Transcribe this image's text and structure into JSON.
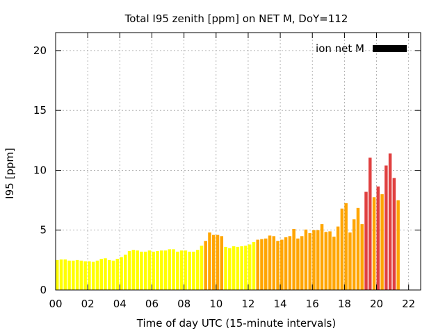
{
  "chart_data": {
    "type": "bar",
    "title": "Total I95 zenith [ppm] on NET M, DoY=112",
    "xlabel": "Time of day UTC (15-minute intervals)",
    "ylabel": "I95 [ppm]",
    "xlim": [
      0,
      22.75
    ],
    "ylim": [
      0,
      21.5
    ],
    "x_ticks": [
      "00",
      "02",
      "04",
      "06",
      "08",
      "10",
      "12",
      "14",
      "16",
      "18",
      "20",
      "22"
    ],
    "x_tick_values": [
      0,
      2,
      4,
      6,
      8,
      10,
      12,
      14,
      16,
      18,
      20,
      22
    ],
    "y_ticks": [
      "0",
      "5",
      "10",
      "15",
      "20"
    ],
    "y_tick_values": [
      0,
      5,
      10,
      15,
      20
    ],
    "grid": true,
    "legend": {
      "label": "ion net M",
      "placement": "top-right",
      "color": "#000000"
    },
    "colors": {
      "low": "#ffff00",
      "medium": "#ffa500",
      "high": "#e04040"
    },
    "interval_hours": 0.25,
    "values": [
      2.5,
      2.55,
      2.55,
      2.45,
      2.45,
      2.5,
      2.45,
      2.4,
      2.4,
      2.35,
      2.45,
      2.6,
      2.65,
      2.5,
      2.45,
      2.6,
      2.75,
      2.95,
      3.25,
      3.35,
      3.3,
      3.2,
      3.2,
      3.3,
      3.2,
      3.25,
      3.3,
      3.3,
      3.4,
      3.4,
      3.2,
      3.3,
      3.3,
      3.2,
      3.2,
      3.35,
      3.7,
      4.1,
      4.8,
      4.6,
      4.6,
      4.5,
      3.6,
      3.5,
      3.65,
      3.6,
      3.65,
      3.7,
      3.8,
      4.0,
      4.2,
      4.25,
      4.3,
      4.55,
      4.5,
      4.1,
      4.2,
      4.4,
      4.5,
      5.1,
      4.3,
      4.5,
      5.05,
      4.75,
      5.0,
      5.0,
      5.5,
      4.85,
      4.9,
      4.45,
      5.3,
      6.8,
      7.25,
      4.8,
      5.9,
      6.85,
      5.5,
      8.2,
      11.05,
      7.75,
      8.65,
      8.0,
      10.4,
      11.4,
      9.35,
      7.5
    ],
    "levels": [
      "low",
      "low",
      "low",
      "low",
      "low",
      "low",
      "low",
      "low",
      "low",
      "low",
      "low",
      "low",
      "low",
      "low",
      "low",
      "low",
      "low",
      "low",
      "low",
      "low",
      "low",
      "low",
      "low",
      "low",
      "low",
      "low",
      "low",
      "low",
      "low",
      "low",
      "low",
      "low",
      "low",
      "low",
      "low",
      "low",
      "low",
      "medium",
      "medium",
      "medium",
      "medium",
      "medium",
      "low",
      "low",
      "low",
      "low",
      "low",
      "low",
      "low",
      "low",
      "medium",
      "medium",
      "medium",
      "medium",
      "medium",
      "medium",
      "medium",
      "medium",
      "medium",
      "medium",
      "medium",
      "medium",
      "medium",
      "medium",
      "medium",
      "medium",
      "medium",
      "medium",
      "medium",
      "medium",
      "medium",
      "medium",
      "medium",
      "medium",
      "medium",
      "medium",
      "medium",
      "high",
      "high",
      "medium",
      "high",
      "medium",
      "high",
      "high",
      "high",
      "medium"
    ]
  }
}
